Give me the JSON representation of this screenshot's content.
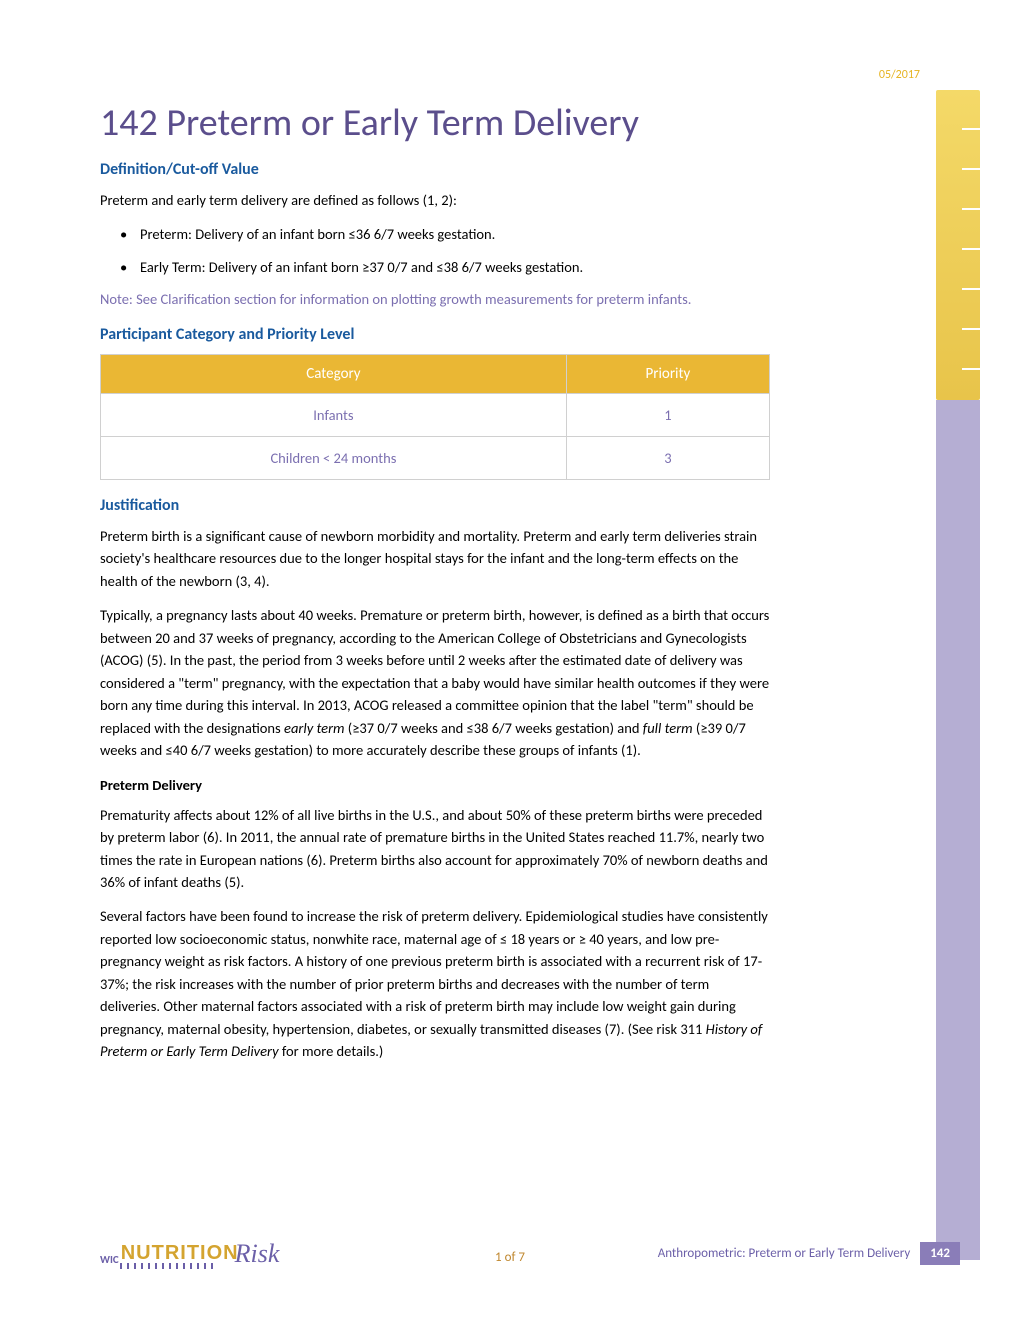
{
  "meta": {
    "date_stamp": "05/2017"
  },
  "title": "142 Preterm or Early Term Delivery",
  "sections": {
    "definition": {
      "heading": "Definition/Cut-off Value",
      "intro": "Preterm and early term delivery are defined as follows (1, 2):",
      "bullets": [
        "Preterm: Delivery of an infant born ≤36 6/7 weeks gestation.",
        "Early Term: Delivery of an infant born ≥37 0/7 and ≤38 6/7 weeks gestation."
      ],
      "note": "Note:  See Clarification section for information on plotting growth measurements for preterm infants."
    },
    "priority": {
      "heading": "Participant Category and Priority Level",
      "columns": [
        "Category",
        "Priority"
      ],
      "rows": [
        [
          "Infants",
          "1"
        ],
        [
          "Children < 24 months",
          "3"
        ]
      ]
    },
    "justification": {
      "heading": "Justification",
      "p1": "Preterm birth is a significant cause of newborn morbidity and mortality.  Preterm and early term deliveries strain society's healthcare resources due to the longer hospital stays for the infant and the long-term effects on the health of the newborn (3, 4).",
      "p2_a": "Typically, a pregnancy lasts about 40 weeks.  Premature or preterm birth, however, is defined as a birth that occurs between 20 and 37 weeks of pregnancy, according to the American College of Obstetricians and Gynecologists (ACOG) (5).  In the past, the period from 3 weeks before until 2 weeks after the estimated date of delivery was considered a \"term\" pregnancy, with the expectation that a baby would have similar health outcomes if they were born any time during this interval.  In 2013, ACOG released a committee opinion that the label \"term\" should be replaced with the designations ",
      "p2_early": "early term",
      "p2_b": " (≥37 0/7 weeks and ≤38 6/7 weeks gestation) and ",
      "p2_full": "full term",
      "p2_c": " (≥39 0/7 weeks and ≤40 6/7 weeks gestation) to more accurately describe these groups of infants (1).",
      "sub_heading": "Preterm Delivery",
      "p3": "Prematurity affects about 12% of all live births in the U.S., and about 50% of these preterm births were preceded by preterm labor (6).  In 2011, the annual rate of premature births in the United States reached 11.7%, nearly two times the rate in European nations (6).  Preterm births also account for approximately 70% of newborn deaths and 36% of infant deaths (5).",
      "p4_a": "Several factors have been found to increase the risk of preterm delivery.  Epidemiological studies have consistently reported low socioeconomic status, nonwhite race, maternal age of ≤ 18 years or ≥ 40 years, and low pre-pregnancy weight as risk factors.  A history of one previous preterm birth is associated with a recurrent risk of 17-37%; the risk increases with the number of prior preterm births and decreases with the number of term deliveries.  Other maternal factors associated with a risk of preterm birth may include low weight gain during pregnancy, maternal obesity, hypertension, diabetes, or sexually transmitted diseases (7). (See risk 311 ",
      "p4_italic": "History of Preterm or Early Term Delivery",
      "p4_b": " for more details.)"
    }
  },
  "footer": {
    "logo_wic": "WIC",
    "logo_nutrition": "NUTRITION",
    "logo_risk": "Risk",
    "page": "1 of 7",
    "right_text": "Anthropometric: Preterm or Early Term Delivery",
    "code": "142"
  },
  "colors": {
    "title": "#5b4e8c",
    "heading": "#1a5a9e",
    "note": "#7b6fb0",
    "table_header_bg": "#eab734",
    "table_header_fg": "#ffffff",
    "table_cell_fg": "#7b6fb0",
    "table_border": "#d0d0d0",
    "ruler_gradient_top": "#f4d968",
    "ruler_gradient_bottom": "#e8c44a",
    "sidebar": "#b5aed3",
    "date": "#e6b422",
    "footer_purple": "#6b5fa8",
    "footer_gold": "#d4a430",
    "footer_code_bg": "#8a7db8",
    "page_num": "#c08830"
  }
}
